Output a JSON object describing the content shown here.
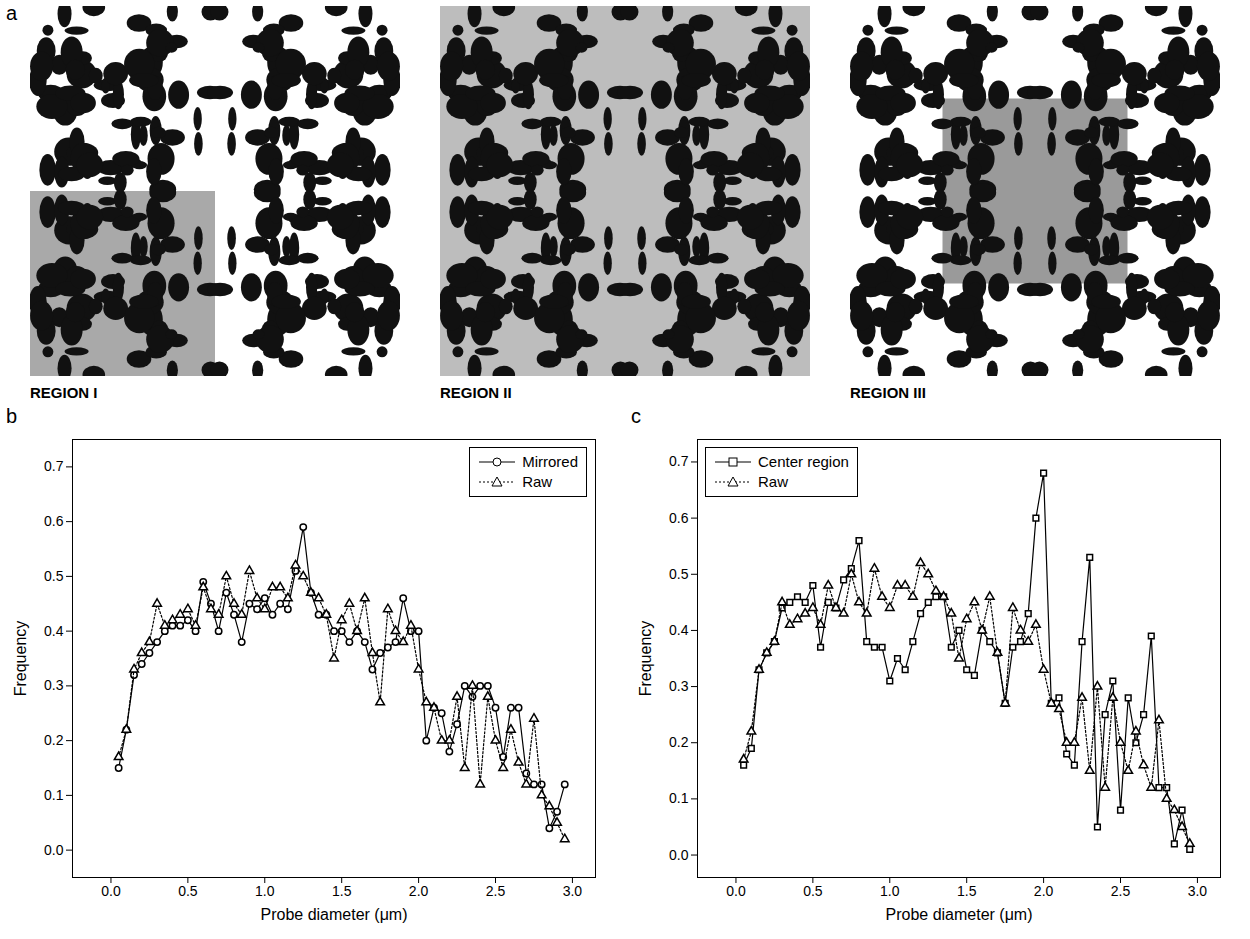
{
  "figure_a": {
    "panel_label": "a",
    "region_labels": [
      "REGION I",
      "REGION II",
      "REGION III"
    ]
  },
  "chart_data": [
    {
      "type": "line",
      "panel_label": "b",
      "x_label": "Probe diameter (μm)",
      "y_label": "Frequency",
      "x": [
        0.05,
        0.1,
        0.15,
        0.2,
        0.25,
        0.3,
        0.35,
        0.4,
        0.45,
        0.5,
        0.55,
        0.6,
        0.65,
        0.7,
        0.75,
        0.8,
        0.85,
        0.9,
        0.95,
        1.0,
        1.05,
        1.1,
        1.15,
        1.2,
        1.25,
        1.3,
        1.35,
        1.4,
        1.45,
        1.5,
        1.55,
        1.6,
        1.65,
        1.7,
        1.75,
        1.8,
        1.85,
        1.9,
        1.95,
        2.0,
        2.05,
        2.1,
        2.15,
        2.2,
        2.25,
        2.3,
        2.35,
        2.4,
        2.45,
        2.5,
        2.55,
        2.6,
        2.65,
        2.7,
        2.75,
        2.8,
        2.85,
        2.9,
        2.95
      ],
      "series": [
        {
          "name": "Mirrored",
          "color": "#000000",
          "marker": "circle",
          "line_style": "solid",
          "values": [
            0.15,
            0.22,
            0.32,
            0.34,
            0.36,
            0.38,
            0.4,
            0.41,
            0.41,
            0.42,
            0.4,
            0.49,
            0.45,
            0.4,
            0.47,
            0.43,
            0.38,
            0.45,
            0.44,
            0.46,
            0.43,
            0.45,
            0.44,
            0.51,
            0.59,
            0.47,
            0.43,
            0.43,
            0.4,
            0.4,
            0.38,
            0.4,
            0.38,
            0.33,
            0.36,
            0.37,
            0.38,
            0.46,
            0.4,
            0.4,
            0.2,
            0.26,
            0.25,
            0.18,
            0.23,
            0.3,
            0.28,
            0.3,
            0.3,
            0.26,
            0.17,
            0.26,
            0.26,
            0.14,
            0.12,
            0.12,
            0.04,
            0.07,
            0.12
          ]
        },
        {
          "name": "Raw",
          "color": "#000000",
          "marker": "triangle",
          "line_style": "dotted",
          "values": [
            0.17,
            0.22,
            0.33,
            0.36,
            0.38,
            0.45,
            0.41,
            0.42,
            0.43,
            0.44,
            0.41,
            0.48,
            0.44,
            0.43,
            0.5,
            0.45,
            0.43,
            0.51,
            0.46,
            0.44,
            0.48,
            0.48,
            0.46,
            0.52,
            0.5,
            0.47,
            0.46,
            0.43,
            0.35,
            0.42,
            0.45,
            0.4,
            0.46,
            0.36,
            0.27,
            0.44,
            0.4,
            0.38,
            0.41,
            0.33,
            0.27,
            0.26,
            0.2,
            0.2,
            0.28,
            0.15,
            0.3,
            0.12,
            0.28,
            0.2,
            0.15,
            0.22,
            0.16,
            0.12,
            0.24,
            0.1,
            0.08,
            0.05,
            0.02
          ]
        }
      ],
      "xlim": [
        -0.25,
        3.15
      ],
      "xticks": [
        {
          "value": 0,
          "label": "0.0"
        },
        {
          "value": 0.5,
          "label": "0.5"
        },
        {
          "value": 1,
          "label": "1.0"
        },
        {
          "value": 1.5,
          "label": "1.5"
        },
        {
          "value": 2,
          "label": "2.0"
        },
        {
          "value": 2.5,
          "label": "2.5"
        },
        {
          "value": 3,
          "label": "3.0"
        }
      ],
      "ylim": [
        -0.05,
        0.75
      ],
      "yticks": [
        {
          "value": 0,
          "label": "0.0"
        },
        0.1,
        0.2,
        0.3,
        0.4,
        0.5,
        0.6,
        0.7
      ],
      "legend": "top-right",
      "grid": false
    },
    {
      "type": "line",
      "panel_label": "c",
      "x_label": "Probe diameter (μm)",
      "y_label": "Frequency",
      "x": [
        0.05,
        0.1,
        0.15,
        0.2,
        0.25,
        0.3,
        0.35,
        0.4,
        0.45,
        0.5,
        0.55,
        0.6,
        0.65,
        0.7,
        0.75,
        0.8,
        0.85,
        0.9,
        0.95,
        1.0,
        1.05,
        1.1,
        1.15,
        1.2,
        1.25,
        1.3,
        1.35,
        1.4,
        1.45,
        1.5,
        1.55,
        1.6,
        1.65,
        1.7,
        1.75,
        1.8,
        1.85,
        1.9,
        1.95,
        2.0,
        2.05,
        2.1,
        2.15,
        2.2,
        2.25,
        2.3,
        2.35,
        2.4,
        2.45,
        2.5,
        2.55,
        2.6,
        2.65,
        2.7,
        2.75,
        2.8,
        2.85,
        2.9,
        2.95
      ],
      "series": [
        {
          "name": "Center region",
          "color": "#000000",
          "marker": "square",
          "line_style": "solid",
          "values": [
            0.16,
            0.19,
            0.33,
            0.36,
            0.38,
            0.44,
            0.45,
            0.46,
            0.45,
            0.48,
            0.37,
            0.45,
            0.44,
            0.49,
            0.51,
            0.56,
            0.38,
            0.37,
            0.37,
            0.31,
            0.35,
            0.33,
            0.38,
            0.43,
            0.45,
            0.46,
            0.46,
            0.37,
            0.4,
            0.33,
            0.32,
            0.4,
            0.38,
            0.36,
            0.27,
            0.37,
            0.38,
            0.43,
            0.6,
            0.68,
            0.27,
            0.28,
            0.18,
            0.16,
            0.38,
            0.53,
            0.05,
            0.25,
            0.31,
            0.08,
            0.28,
            0.2,
            0.25,
            0.39,
            0.12,
            0.12,
            0.02,
            0.08,
            0.01
          ]
        },
        {
          "name": "Raw",
          "color": "#000000",
          "marker": "triangle",
          "line_style": "dotted",
          "values": [
            0.17,
            0.22,
            0.33,
            0.36,
            0.38,
            0.45,
            0.41,
            0.42,
            0.43,
            0.44,
            0.41,
            0.48,
            0.44,
            0.43,
            0.5,
            0.45,
            0.43,
            0.51,
            0.46,
            0.44,
            0.48,
            0.48,
            0.46,
            0.52,
            0.5,
            0.47,
            0.46,
            0.43,
            0.35,
            0.42,
            0.45,
            0.4,
            0.46,
            0.36,
            0.27,
            0.44,
            0.4,
            0.38,
            0.41,
            0.33,
            0.27,
            0.26,
            0.2,
            0.2,
            0.28,
            0.15,
            0.3,
            0.12,
            0.28,
            0.2,
            0.15,
            0.22,
            0.16,
            0.12,
            0.24,
            0.1,
            0.08,
            0.05,
            0.02
          ]
        }
      ],
      "xlim": [
        -0.25,
        3.15
      ],
      "xticks": [
        {
          "value": 0,
          "label": "0.0"
        },
        {
          "value": 0.5,
          "label": "0.5"
        },
        {
          "value": 1,
          "label": "1.0"
        },
        {
          "value": 1.5,
          "label": "1.5"
        },
        {
          "value": 2,
          "label": "2.0"
        },
        {
          "value": 2.5,
          "label": "2.5"
        },
        {
          "value": 3,
          "label": "3.0"
        }
      ],
      "ylim": [
        -0.04,
        0.74
      ],
      "yticks": [
        {
          "value": 0,
          "label": "0.0"
        },
        0.1,
        0.2,
        0.3,
        0.4,
        0.5,
        0.6,
        0.7
      ],
      "legend": "top-left",
      "grid": false
    }
  ]
}
